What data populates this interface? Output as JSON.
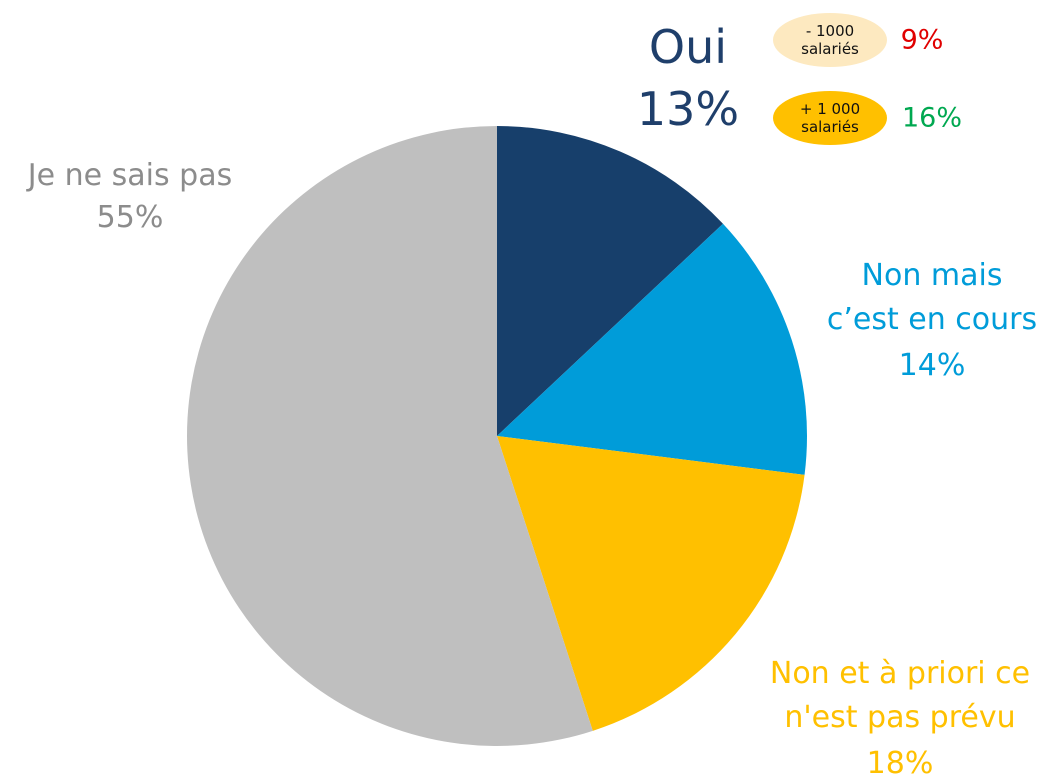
{
  "chart_data": {
    "type": "pie",
    "categories": [
      "Oui",
      "Non mais\nc’est en cours",
      "Non et à priori ce\nn'est pas prévu",
      "Je ne sais pas"
    ],
    "values": [
      13,
      14,
      18,
      55
    ],
    "value_labels": [
      "13%",
      "14%",
      "18%",
      "55%"
    ],
    "colors": [
      "#173f6b",
      "#009cd9",
      "#ffc000",
      "#bfbfbf"
    ],
    "label_colors": [
      "#1f3f6b",
      "#009cd9",
      "#ffc000",
      "#8c8c8c"
    ],
    "annotations": [
      {
        "label": "- 1000\nsalariés",
        "value": 9,
        "value_label": "9%",
        "color": "#fde9c0",
        "value_color": "#e00000"
      },
      {
        "label": "+ 1 000\nsalariés",
        "value": 16,
        "value_label": "16%",
        "color": "#ffc000",
        "value_color": "#00a850"
      }
    ]
  }
}
